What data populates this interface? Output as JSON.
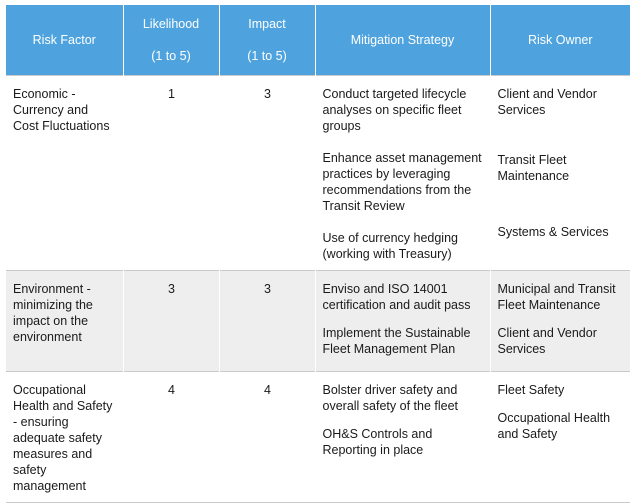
{
  "headers": {
    "risk_factor": "Risk Factor",
    "likelihood_l1": "Likelihood",
    "likelihood_l2": "(1 to 5)",
    "impact_l1": "Impact",
    "impact_l2": "(1 to 5)",
    "mitigation": "Mitigation Strategy",
    "owner": "Risk Owner"
  },
  "rows": [
    {
      "factor": "Economic - Currency and Cost Fluctuations",
      "likelihood": "1",
      "impact": "3",
      "mitigation": [
        "Conduct targeted lifecycle analyses on specific fleet groups",
        "Enhance asset management practices by leveraging recommendations from the Transit Review",
        "Use of currency hedging (working with Treasury)"
      ],
      "owners": [
        "Client and Vendor Services",
        "Transit Fleet Maintenance",
        "Systems & Services"
      ]
    },
    {
      "factor": "Environment - minimizing the impact on the environment",
      "likelihood": "3",
      "impact": "3",
      "mitigation": [
        "Enviso and ISO 14001 certification and audit pass",
        "Implement the Sustainable Fleet Management Plan"
      ],
      "owners": [
        "Municipal and Transit Fleet Maintenance",
        "Client and Vendor Services"
      ]
    },
    {
      "factor": "Occupational Health and Safety - ensuring adequate safety measures and safety management",
      "likelihood": "4",
      "impact": "4",
      "mitigation": [
        "Bolster driver safety and overall safety of the fleet",
        "OH&S Controls and Reporting in place"
      ],
      "owners": [
        "Fleet Safety",
        "Occupational Health and Safety"
      ]
    }
  ]
}
